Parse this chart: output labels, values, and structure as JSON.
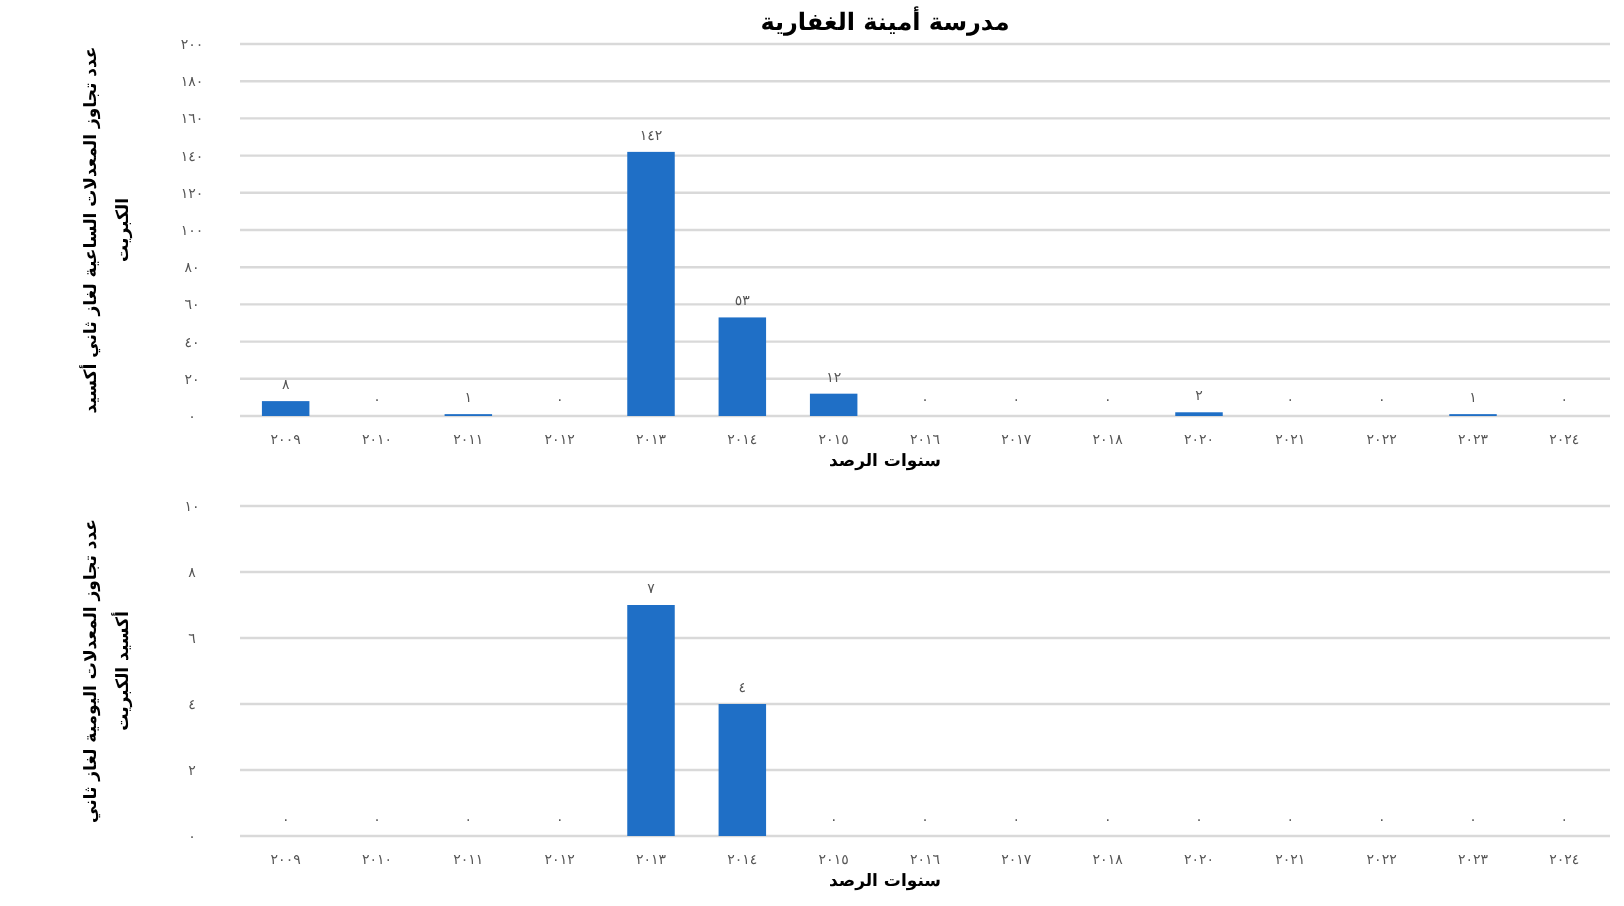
{
  "chart_data": [
    {
      "type": "bar",
      "title": "مدرسة أمينة الغفارية",
      "xlabel": "سنوات الرصد",
      "ylabel": "عدد تجاوز المعدلات الساعية لغاز ثاني أكسيد الكبريت",
      "categories": [
        "٢٠٠٩",
        "٢٠١٠",
        "٢٠١١",
        "٢٠١٢",
        "٢٠١٣",
        "٢٠١٤",
        "٢٠١٥",
        "٢٠١٦",
        "٢٠١٧",
        "٢٠١٨",
        "٢٠٢٠",
        "٢٠٢١",
        "٢٠٢٢",
        "٢٠٢٣",
        "٢٠٢٤"
      ],
      "values": [
        8,
        0,
        1,
        0,
        142,
        53,
        12,
        0,
        0,
        0,
        2,
        0,
        0,
        1,
        0
      ],
      "value_labels": [
        "٨",
        "٠",
        "١",
        "٠",
        "١٤٢",
        "٥٣",
        "١٢",
        "٠",
        "٠",
        "٠",
        "٢",
        "٠",
        "٠",
        "١",
        "٠"
      ],
      "color": "#1f6fc6",
      "ylim": [
        0,
        200
      ],
      "yticks": [
        {
          "value": 0,
          "label": "٠"
        },
        {
          "value": 20,
          "label": "٢٠"
        },
        {
          "value": 40,
          "label": "٤٠"
        },
        {
          "value": 60,
          "label": "٦٠"
        },
        {
          "value": 80,
          "label": "٨٠"
        },
        {
          "value": 100,
          "label": "١٠٠"
        },
        {
          "value": 120,
          "label": "١٢٠"
        },
        {
          "value": 140,
          "label": "١٤٠"
        },
        {
          "value": 160,
          "label": "١٦٠"
        },
        {
          "value": 180,
          "label": "١٨٠"
        },
        {
          "value": 200,
          "label": "٢٠٠"
        }
      ],
      "grid": "y"
    },
    {
      "type": "bar",
      "xlabel": "سنوات الرصد",
      "ylabel": "عدد تجاوز المعدلات اليومية لغاز ثاني أكسيد الكبريت",
      "categories": [
        "٢٠٠٩",
        "٢٠١٠",
        "٢٠١١",
        "٢٠١٢",
        "٢٠١٣",
        "٢٠١٤",
        "٢٠١٥",
        "٢٠١٦",
        "٢٠١٧",
        "٢٠١٨",
        "٢٠٢٠",
        "٢٠٢١",
        "٢٠٢٢",
        "٢٠٢٣",
        "٢٠٢٤"
      ],
      "values": [
        0,
        0,
        0,
        0,
        7,
        4,
        0,
        0,
        0,
        0,
        0,
        0,
        0,
        0,
        0
      ],
      "value_labels": [
        "٠",
        "٠",
        "٠",
        "٠",
        "٧",
        "٤",
        "٠",
        "٠",
        "٠",
        "٠",
        "٠",
        "٠",
        "٠",
        "٠",
        "٠"
      ],
      "color": "#1f6fc6",
      "ylim": [
        0,
        10
      ],
      "yticks": [
        {
          "value": 0,
          "label": "٠"
        },
        {
          "value": 2,
          "label": "٢"
        },
        {
          "value": 4,
          "label": "٤"
        },
        {
          "value": 6,
          "label": "٦"
        },
        {
          "value": 8,
          "label": "٨"
        },
        {
          "value": 10,
          "label": "١٠"
        }
      ],
      "grid": "y"
    }
  ]
}
